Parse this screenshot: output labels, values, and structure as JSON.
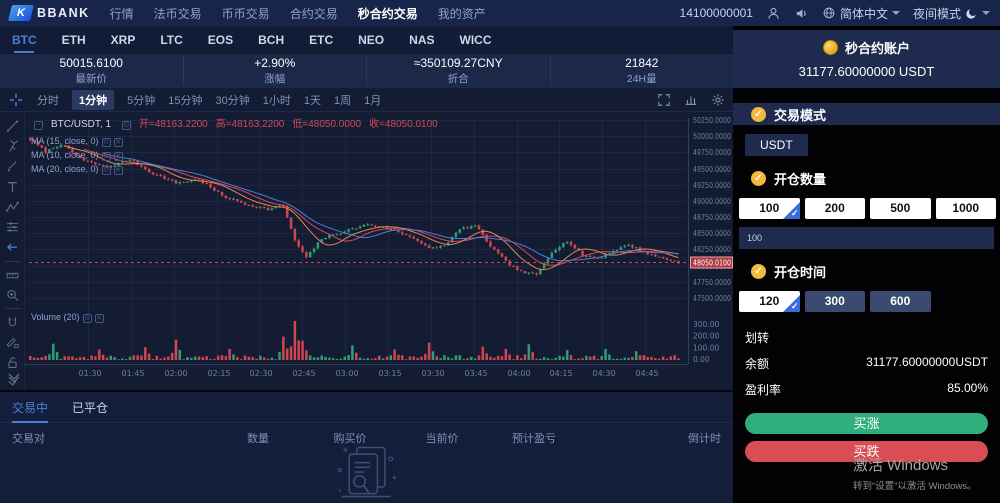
{
  "topnav": {
    "logo_mark": "K",
    "logo_text": "BBANK",
    "items": [
      "行情",
      "法币交易",
      "币币交易",
      "合约交易",
      "秒合约交易",
      "我的资产"
    ],
    "active_item": "秒合约交易",
    "user_id": "14100000001",
    "language": "简体中文",
    "theme_label": "夜间模式"
  },
  "coin_tabs": [
    "BTC",
    "ETH",
    "XRP",
    "LTC",
    "EOS",
    "BCH",
    "ETC",
    "NEO",
    "NAS",
    "WICC"
  ],
  "active_coin": "BTC",
  "ticker": {
    "price": "50015.6100",
    "price_label": "最新价",
    "change": "+2.90%",
    "change_label": "涨幅",
    "converted": "≈350109.27CNY",
    "converted_label": "折合",
    "volume": "21842",
    "volume_label": "24H量"
  },
  "chart": {
    "timeframes": [
      "分时",
      "1分钟",
      "5分钟",
      "15分钟",
      "30分钟",
      "1小时",
      "1天",
      "1周",
      "1月"
    ],
    "active_timeframe": "1分钟",
    "legend": {
      "symbol": "BTC/USDT, 1",
      "open": "开=48163.2200",
      "high": "高=48163.2200",
      "low": "低=48050.0000",
      "close": "收=48050.0100"
    },
    "ma_labels": [
      "MA (15, close, 0)",
      "MA (10, close, 0)",
      "MA (20, close, 0)"
    ],
    "volume_legend": "Volume (20)"
  },
  "chart_data": {
    "type": "candlestick",
    "title": "BTC/USDT 1分钟",
    "x_labels": [
      "01:30",
      "01:45",
      "02:00",
      "02:15",
      "02:30",
      "02:45",
      "03:00",
      "03:15",
      "03:30",
      "03:45",
      "04:00",
      "04:15",
      "04:30",
      "04:45"
    ],
    "price_ticks": [
      47500,
      47750,
      48000,
      48250,
      48500,
      48750,
      49000,
      49250,
      49500,
      49750,
      50000,
      50250
    ],
    "volume_ticks": [
      "300.00",
      "200.00",
      "100.00",
      "0.00"
    ],
    "ylim": [
      47420,
      50330
    ],
    "current_price": 48050.01,
    "current_price_label": "48050.0100",
    "candle_count": 170,
    "price_anchors": [
      [
        0,
        49950
      ],
      [
        4,
        49760
      ],
      [
        8,
        49880
      ],
      [
        14,
        49620
      ],
      [
        20,
        49520
      ],
      [
        26,
        49640
      ],
      [
        32,
        49420
      ],
      [
        38,
        49280
      ],
      [
        44,
        49330
      ],
      [
        50,
        49080
      ],
      [
        56,
        48950
      ],
      [
        62,
        48870
      ],
      [
        66,
        48930
      ],
      [
        69,
        48380
      ],
      [
        72,
        48120
      ],
      [
        76,
        48420
      ],
      [
        82,
        48530
      ],
      [
        88,
        48640
      ],
      [
        94,
        48560
      ],
      [
        100,
        48430
      ],
      [
        104,
        48260
      ],
      [
        108,
        48310
      ],
      [
        112,
        48560
      ],
      [
        116,
        48620
      ],
      [
        120,
        48300
      ],
      [
        124,
        48060
      ],
      [
        128,
        47900
      ],
      [
        132,
        47860
      ],
      [
        136,
        48220
      ],
      [
        140,
        48380
      ],
      [
        144,
        48160
      ],
      [
        148,
        48110
      ],
      [
        152,
        48230
      ],
      [
        156,
        48320
      ],
      [
        162,
        48160
      ],
      [
        169,
        48052
      ]
    ],
    "volume_spikes": [
      [
        6,
        140
      ],
      [
        18,
        90
      ],
      [
        30,
        110
      ],
      [
        38,
        175
      ],
      [
        52,
        95
      ],
      [
        66,
        200
      ],
      [
        69,
        335
      ],
      [
        71,
        165
      ],
      [
        84,
        125
      ],
      [
        95,
        90
      ],
      [
        104,
        150
      ],
      [
        118,
        115
      ],
      [
        124,
        95
      ],
      [
        130,
        135
      ],
      [
        140,
        85
      ],
      [
        150,
        95
      ],
      [
        158,
        75
      ]
    ],
    "colors": {
      "up": "#2f9e6e",
      "down": "#cf4550",
      "ma15": "#e14658",
      "ma10": "#e0884a",
      "ma20": "#4d7fd0",
      "grid": "rgba(130,150,200,0.09)",
      "axis_text": "#6d7ea6",
      "price_tag_bg": "#b03a42",
      "current_line": "#c84a50"
    }
  },
  "positions": {
    "tabs": [
      "交易中",
      "已平仓"
    ],
    "active_tab": "交易中",
    "headers": [
      "交易对",
      "数量",
      "购买价",
      "当前价",
      "预计盈亏",
      "倒计时"
    ]
  },
  "trade_panel": {
    "account_label": "秒合约账户",
    "account_balance": "31177.60000000 USDT",
    "mode_label": "交易模式",
    "currency_option": "USDT",
    "amount_label": "开仓数量",
    "amount_options": [
      "100",
      "200",
      "500",
      "1000"
    ],
    "amount_selected": "100",
    "amount_input": "100",
    "time_label": "开仓时间",
    "time_options": [
      "120",
      "300",
      "600"
    ],
    "time_selected": "120",
    "transfer_label": "划转",
    "balance_label": "余额",
    "balance_value": "31177.60000000USDT",
    "profit_label": "盈利率",
    "profit_value": "85.00%",
    "buy_up_label": "买涨",
    "buy_down_label": "买跌"
  },
  "watermark": {
    "line1": "激活 Windows",
    "line2": "转到“设置”以激活 Windows。"
  }
}
